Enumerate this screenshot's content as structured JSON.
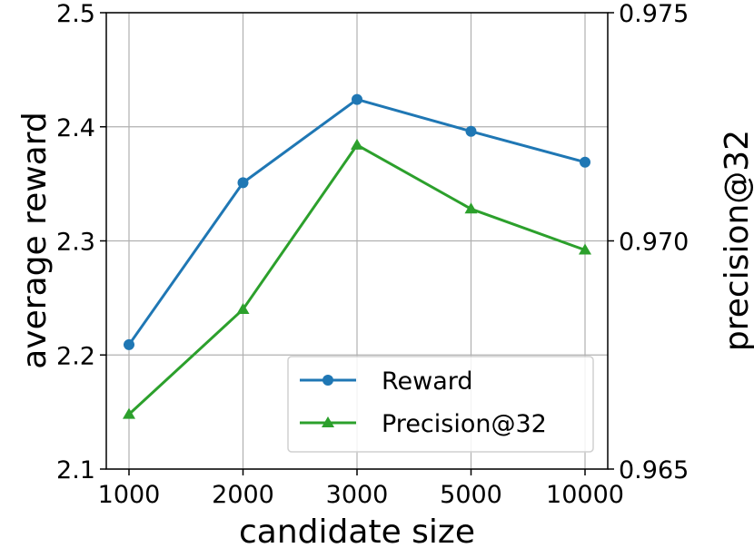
{
  "chart_data": {
    "type": "line",
    "title": "",
    "xlabel": "candidate size",
    "ylabel_left": "average reward",
    "ylabel_right": "precision@32",
    "categories": [
      "1000",
      "2000",
      "3000",
      "5000",
      "10000"
    ],
    "y_left_ticks": [
      "2.1",
      "2.2",
      "2.3",
      "2.4",
      "2.5"
    ],
    "y_left_lim": [
      2.1,
      2.5
    ],
    "y_right_ticks": [
      "0.965",
      "0.970",
      "0.975"
    ],
    "y_right_lim": [
      0.965,
      0.975
    ],
    "grid": true,
    "legend_position": "lower-right",
    "series": [
      {
        "name": "Reward",
        "axis": "left",
        "color": "#1f77b4",
        "marker": "circle",
        "values": [
          2.209,
          2.351,
          2.424,
          2.396,
          2.369
        ]
      },
      {
        "name": "Precision@32",
        "axis": "right",
        "color": "#2ca02c",
        "marker": "triangle",
        "values": [
          0.9662,
          0.9685,
          0.9721,
          0.9707,
          0.9698
        ]
      }
    ]
  }
}
